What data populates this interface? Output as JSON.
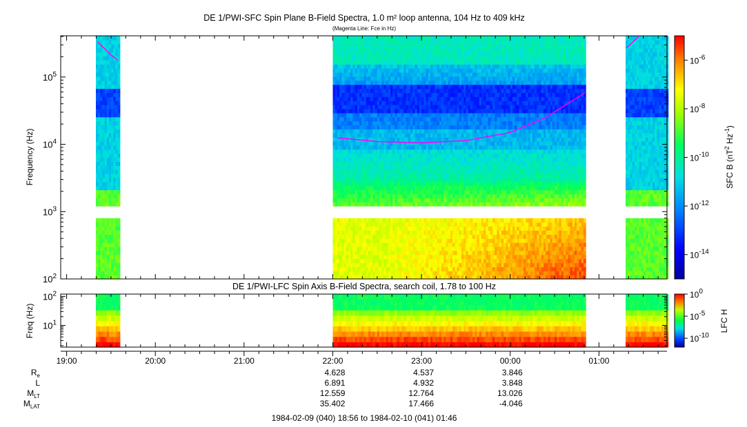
{
  "chart_data": [
    {
      "type": "heatmap",
      "id": "sfc",
      "title": "DE 1/PWI-SFC  Spin Plane B-Field Spectra, 1.0 m² loop antenna, 104 Hz to 409 kHz",
      "subtitle": "(Magenta Line: Fce in Hz)",
      "ylabel": "Frequency (Hz)",
      "yscale": "log",
      "ylim": [
        100,
        409000
      ],
      "yticks": [
        {
          "v": 100,
          "m": "10",
          "e": "2"
        },
        {
          "v": 1000,
          "m": "10",
          "e": "3"
        },
        {
          "v": 10000,
          "m": "10",
          "e": "4"
        },
        {
          "v": 100000,
          "m": "10",
          "e": "5"
        }
      ],
      "colorbar": {
        "label_main": "SFC B (nT",
        "label_sup1": "2",
        "label_mid": " Hz",
        "label_sup2": "-1",
        "label_end": ")",
        "scale": "log",
        "range": [
          1e-15,
          1e-05
        ],
        "ticks": [
          {
            "v": -6,
            "m": "10",
            "e": "-6"
          },
          {
            "v": -8,
            "m": "10",
            "e": "-8"
          },
          {
            "v": -10,
            "m": "10",
            "e": "-10"
          },
          {
            "v": -12,
            "m": "10",
            "e": "-12"
          },
          {
            "v": -14,
            "m": "10",
            "e": "-14"
          }
        ]
      },
      "data_intervals_hours": [
        [
          19.33,
          19.6
        ],
        [
          22.0,
          24.85
        ],
        [
          25.3,
          25.78
        ]
      ],
      "fce_line_color": "#ff00ff",
      "fce_segments": [
        {
          "t": [
            19.35,
            19.42,
            19.5,
            19.58
          ],
          "f": [
            330000,
            270000,
            215000,
            175000
          ]
        },
        {
          "t": [
            22.05,
            22.5,
            23.0,
            23.5,
            24.0,
            24.4,
            24.84
          ],
          "f": [
            12500,
            11000,
            10500,
            11300,
            15000,
            25000,
            58000
          ]
        },
        {
          "t": [
            25.31,
            25.38,
            25.45
          ],
          "f": [
            270000,
            330000,
            400000
          ]
        }
      ]
    },
    {
      "type": "heatmap",
      "id": "lfc",
      "title": "DE 1/PWI-LFC  Spin Axis B-Field Spectra, search coil, 1.78 to 100 Hz",
      "ylabel": "Freq (Hz)",
      "yscale": "log",
      "ylim": [
        1.78,
        120
      ],
      "yticks": [
        {
          "v": 10,
          "m": "10",
          "e": "1"
        },
        {
          "v": 100,
          "m": "10",
          "e": "2"
        }
      ],
      "colorbar": {
        "label": "LFC H",
        "scale": "log",
        "range": [
          1e-12,
          1
        ],
        "ticks": [
          {
            "v": 0,
            "m": "10",
            "e": "0"
          },
          {
            "v": -5,
            "m": "10",
            "e": "-5"
          },
          {
            "v": -10,
            "m": "10",
            "e": "-10"
          }
        ]
      },
      "data_intervals_hours": [
        [
          19.33,
          19.6
        ],
        [
          22.0,
          24.85
        ],
        [
          25.3,
          25.78
        ]
      ]
    }
  ],
  "time_axis": {
    "start_hours": 18.9333,
    "end_hours": 25.7667,
    "ticks": [
      {
        "h": 19,
        "label": "19:00"
      },
      {
        "h": 20,
        "label": "20:00"
      },
      {
        "h": 21,
        "label": "21:00"
      },
      {
        "h": 22,
        "label": "22:00"
      },
      {
        "h": 23,
        "label": "23:00"
      },
      {
        "h": 24,
        "label": "00:00"
      },
      {
        "h": 25,
        "label": "01:00"
      }
    ]
  },
  "ephemeris": {
    "rows": [
      {
        "label": "R",
        "sub": "e",
        "values": [
          "4.628",
          "4.537",
          "3.846"
        ]
      },
      {
        "label": "L",
        "sub": "",
        "values": [
          "6.891",
          "4.932",
          "3.848"
        ]
      },
      {
        "label": "M",
        "sub": "LT",
        "values": [
          "12.559",
          "12.764",
          "13.026"
        ]
      },
      {
        "label": "M",
        "sub": "LAT",
        "values": [
          "35.402",
          "17.466",
          "-4.046"
        ]
      }
    ]
  },
  "footer": "1984-02-09 (040) 18:56 to 1984-02-10 (041) 01:46"
}
